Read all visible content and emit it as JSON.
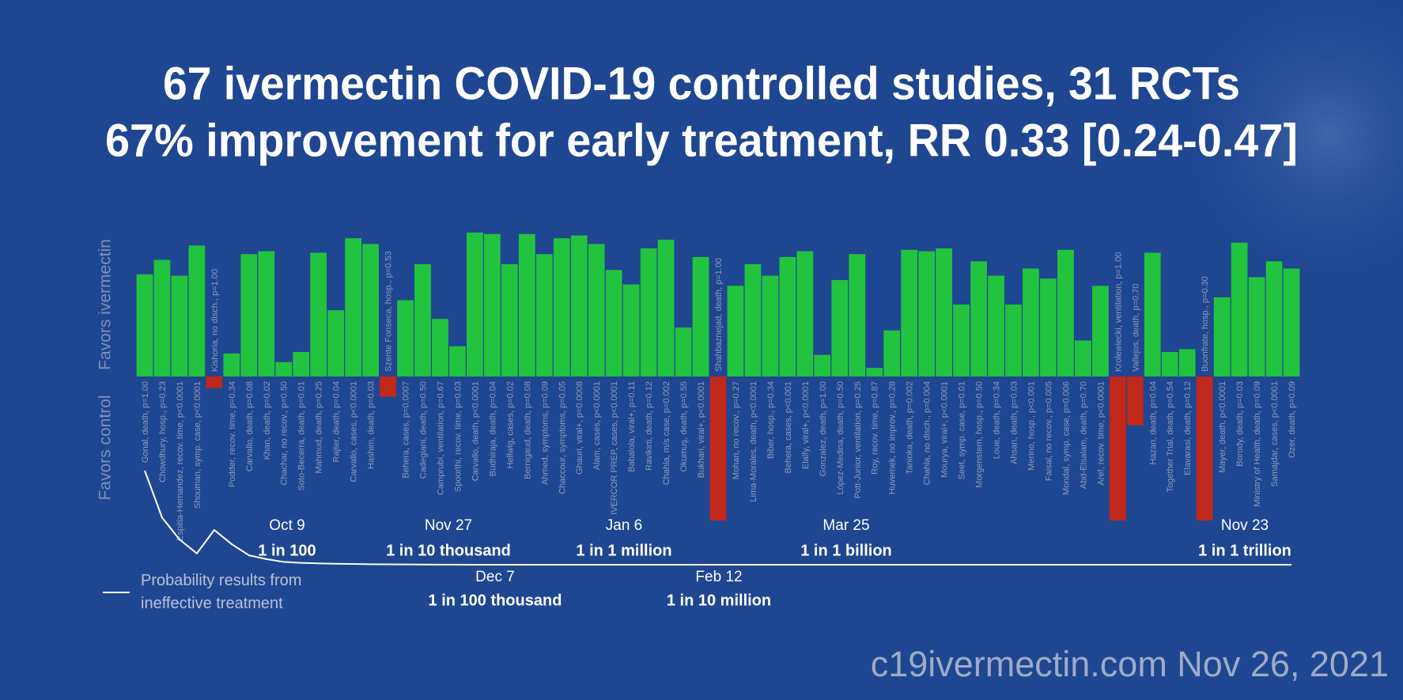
{
  "chart_data": {
    "type": "bar",
    "title": "67 ivermectin COVID-19 controlled studies, 31 RCTs",
    "subtitle": "67% improvement for early treatment, RR 0.33 [0.24-0.47]",
    "y_labels": [
      "Favors ivermectin",
      "Favors control"
    ],
    "ylim": [
      -100,
      100
    ],
    "positive_color": "#22c43f",
    "negative_color": "#c0281c",
    "categories": [
      "Gonal, death, p=1.00",
      "Chowdhury, hosp., p=0.23",
      "Espitia-Hernandez, recov. time, p<0.0001",
      "Shouman, symp. case, p<0.0001",
      "Kishoria, no disch., p=1.00",
      "Podder, recov. time, p=0.34",
      "Carvallo, death, p=0.08",
      "Khan, death, p=0.02",
      "Chachar, no recov., p=0.50",
      "Soto-Becerra, death, p=0.01",
      "Mahmud, death, p=0.25",
      "Rajter, death, p=0.04",
      "Carvallo, cases, p<0.0001",
      "Hashim, death, p=0.03",
      "Szente Fonseca, hosp., p=0.53",
      "Behera, cases, p=0.0007",
      "Cadegiani, death, p=0.50",
      "Camprubí, ventilation, p=0.67",
      "Spoorthi, recov. time, p=0.03",
      "Carvallo, death, p<0.0001",
      "Budhiraja, death, p=0.04",
      "Hellwig, cases, p=0.02",
      "Bernigaud, death, p=0.08",
      "Ahmed, symptoms, p=0.09",
      "Chaccour, symptoms, p=0.05",
      "Ghauri, viral+, p=0.0008",
      "Alam, cases, p<0.0001",
      "IVERCOR PREP, cases, p<0.0001",
      "Babalola, viral+, p=0.11",
      "Ravikirti, death, p=0.12",
      "Chahla, m/s case, p=0.002",
      "Okumuş, death, p=0.55",
      "Bukhari, viral+, p<0.0001",
      "Shahbaznejad, death, p=1.00",
      "Mohan, no recov., p=0.27",
      "Lima-Morales, death, p<0.0001",
      "Biber, hosp., p=0.34",
      "Behera, cases, p<0.001",
      "Elalfy, viral+, p<0.0001",
      "Gonzalez, death, p=1.00",
      "López-Medina, death, p=0.50",
      "Pott-Junior, ventilation, p=0.25",
      "Roy, recov. time, p=0.87",
      "Huvemek, no improv., p=0.28",
      "Tanioka, death, p=0.002",
      "Chahla, no disch., p=0.004",
      "Mourya, viral+, p<0.0001",
      "Seet, symp. case, p=0.01",
      "Morgenstern, hosp., p=0.50",
      "Loue, death, p=0.34",
      "Ahsan, death, p=0.03",
      "Merino, hosp., p<0.001",
      "Faisal, no recov., p=0.005",
      "Mondal, symp. case, p=0.006",
      "Abd-Elsalam, death, p=0.70",
      "Aref, recov. time, p<0.0001",
      "Krolewiecki, ventilation, p=1.00",
      "Vallejos, death, p=0.70",
      "Hazan, death, p=0.04",
      "Together Trial, death, p=0.54",
      "Elavarasi, death, p=0.12",
      "Buonfrate, hosp., p=0.30",
      "Mayer, death, p<0.0001",
      "Borody, death, p=0.03",
      "Ministry of Health, death, p=0.09",
      "Samajdar, cases, p<0.0001",
      "Ozer, death, p=0.09"
    ],
    "values": [
      71,
      81,
      70,
      91,
      -8,
      16,
      85,
      87,
      10,
      17,
      86,
      46,
      96,
      92,
      -14,
      53,
      78,
      40,
      21,
      100,
      99,
      78,
      99,
      85,
      96,
      98,
      92,
      74,
      64,
      89,
      95,
      34,
      83,
      -100,
      63,
      78,
      70,
      83,
      87,
      15,
      67,
      85,
      6,
      32,
      88,
      87,
      89,
      50,
      80,
      70,
      50,
      75,
      68,
      88,
      25,
      63,
      -100,
      -34,
      86,
      17,
      19,
      -100,
      55,
      93,
      69,
      80,
      75
    ],
    "probability_line": {
      "name": "Probability results from ineffective treatment",
      "color": "#ffffff",
      "ylim": [
        0,
        1
      ],
      "values": [
        1.0,
        0.5,
        0.27,
        0.12,
        0.37,
        0.22,
        0.1,
        0.06,
        0.03,
        0.02,
        0.015,
        0.01,
        0.008,
        0.005,
        0.004,
        0.003,
        0.002,
        0.001,
        0.001,
        0,
        0,
        0,
        0,
        0,
        0,
        0,
        0,
        0,
        0,
        0,
        0,
        0,
        0,
        0,
        0,
        0,
        0,
        0,
        0,
        0,
        0,
        0,
        0,
        0,
        0,
        0,
        0,
        0,
        0,
        0,
        0,
        0,
        0,
        0,
        0,
        0,
        0,
        0,
        0,
        0,
        0,
        0,
        0,
        0,
        0,
        0,
        0
      ]
    },
    "annotations": [
      {
        "date": "Oct 9",
        "label": "1 in 100"
      },
      {
        "date": "Nov 27",
        "label": "1 in 10 thousand"
      },
      {
        "date": "Dec 7",
        "label": "1 in 100 thousand"
      },
      {
        "date": "Jan 6",
        "label": "1 in 1 million"
      },
      {
        "date": "Feb 12",
        "label": "1 in 10 million"
      },
      {
        "date": "Mar 25",
        "label": "1 in 1 billion"
      },
      {
        "date": "Nov 23",
        "label": "1 in 1 trillion"
      }
    ],
    "source": "c19ivermectin.com Nov 26, 2021"
  }
}
